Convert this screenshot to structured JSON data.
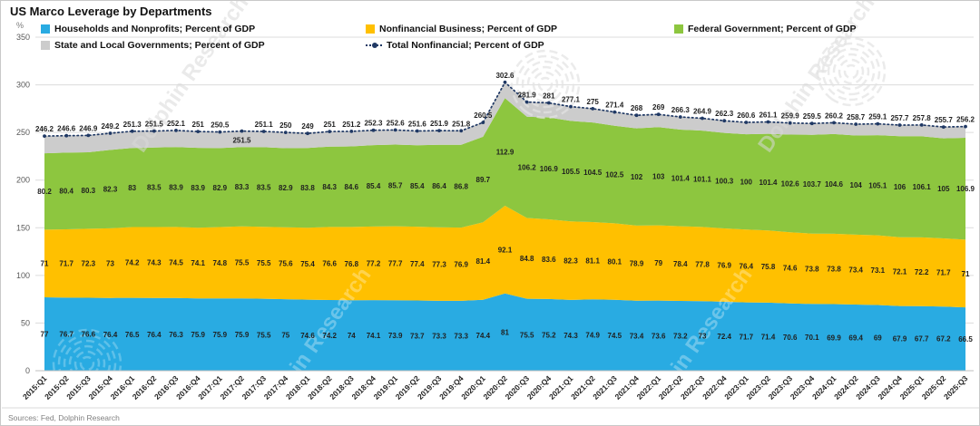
{
  "title": "US Marco Leverage by Departments",
  "y_axis_unit": "%",
  "source_note": "Sources:  Fed, Dolphin Research",
  "watermark_text": "Dolphin Research",
  "colors": {
    "households": "#29ABE2",
    "business": "#FFC000",
    "federal": "#8DC63F",
    "state_local": "#CCCCCC",
    "total_line": "#1F3864",
    "gridline": "#DCDCDC"
  },
  "legend": [
    {
      "key": "households",
      "label": "Households and Nonprofits; Percent of GDP",
      "marker": "square",
      "color": "#29ABE2"
    },
    {
      "key": "business",
      "label": "Nonfinancial Business; Percent of GDP",
      "marker": "square",
      "color": "#FFC000"
    },
    {
      "key": "federal",
      "label": "Federal Government; Percent of GDP",
      "marker": "square",
      "color": "#8DC63F"
    },
    {
      "key": "state-local",
      "label": "State and Local Governments; Percent of GDP",
      "marker": "square",
      "color": "#CCCCCC"
    },
    {
      "key": "total",
      "label": "Total Nonfinancial; Percent of GDP",
      "marker": "line",
      "color": "#1F3864"
    }
  ],
  "chart_data": {
    "type": "area",
    "stacked": true,
    "title": "US Marco Leverage by Departments",
    "ylabel": "%",
    "ylim": [
      0,
      350
    ],
    "yticks": [
      0,
      50,
      100,
      150,
      200,
      250,
      300,
      350
    ],
    "grid": true,
    "legend_position": "top",
    "categories": [
      "2015:Q1",
      "2015:Q2",
      "2015:Q3",
      "2015:Q4",
      "2016:Q1",
      "2016:Q2",
      "2016:Q3",
      "2016:Q4",
      "2017:Q1",
      "2017:Q2",
      "2017:Q3",
      "2017:Q4",
      "2018:Q1",
      "2018:Q2",
      "2018:Q3",
      "2018:Q4",
      "2019:Q1",
      "2019:Q2",
      "2019:Q3",
      "2019:Q4",
      "2020:Q1",
      "2020:Q2",
      "2020:Q3",
      "2020:Q4",
      "2021:Q1",
      "2021:Q2",
      "2021:Q3",
      "2021:Q4",
      "2022:Q1",
      "2022:Q2",
      "2022:Q3",
      "2022:Q4",
      "2023:Q1",
      "2023:Q2",
      "2023:Q3",
      "2023:Q4",
      "2024:Q1",
      "2024:Q2",
      "2024:Q3",
      "2024:Q4",
      "2025:Q1",
      "2025:Q2",
      "2025:Q3"
    ],
    "series": [
      {
        "name": "Households and Nonprofits; Percent of GDP",
        "type": "area",
        "color": "#29ABE2",
        "values": [
          77,
          76.7,
          76.6,
          76.4,
          76.5,
          76.4,
          76.3,
          75.9,
          75.9,
          75.9,
          75.5,
          75,
          74.6,
          74.2,
          74,
          74.1,
          73.9,
          73.7,
          73.3,
          73.3,
          74.4,
          81,
          75.5,
          75.2,
          74.3,
          74.9,
          74.5,
          73.4,
          73.6,
          73.2,
          73,
          72.4,
          71.7,
          71.4,
          70.6,
          70.1,
          69.9,
          69.4,
          69,
          67.9,
          67.7,
          67.2,
          66.5
        ]
      },
      {
        "name": "Nonfinancial Business; Percent of GDP",
        "type": "area",
        "color": "#FFC000",
        "values": [
          71,
          71.7,
          72.3,
          73,
          74.2,
          74.3,
          74.5,
          74.1,
          74.8,
          75.5,
          75.5,
          75.6,
          75.4,
          76.6,
          76.8,
          77.2,
          77.7,
          77.4,
          77.3,
          76.9,
          81.4,
          92.1,
          84.8,
          83.6,
          82.3,
          81.1,
          80.1,
          78.9,
          79,
          78.4,
          77.8,
          76.9,
          76.4,
          75.8,
          74.6,
          73.8,
          73.8,
          73.4,
          73.1,
          72.1,
          72.2,
          71.7,
          71
        ]
      },
      {
        "name": "Federal Government; Percent of GDP",
        "type": "area",
        "color": "#8DC63F",
        "values": [
          80.2,
          80.4,
          80.3,
          82.3,
          83,
          83.5,
          83.9,
          83.9,
          82.9,
          83.3,
          83.5,
          82.9,
          83.8,
          84.3,
          84.6,
          85.4,
          85.7,
          85.4,
          86.4,
          86.8,
          89.7,
          112.9,
          106.2,
          106.9,
          105.5,
          104.5,
          102.5,
          102,
          103,
          101.4,
          101.1,
          100.3,
          100,
          101.4,
          102.6,
          103.7,
          104.6,
          104,
          105.1,
          106,
          106.1,
          105,
          106.9
        ]
      },
      {
        "name": "State and Local Governments; Percent of GDP",
        "type": "area",
        "color": "#CCCCCC",
        "values": null,
        "note": "no data labels shown; band equals Total minus sum of other series"
      },
      {
        "name": "Total Nonfinancial; Percent of GDP",
        "type": "line",
        "color": "#1F3864",
        "values": [
          246.2,
          246.6,
          246.9,
          249.2,
          251.3,
          251.5,
          252.1,
          251,
          250.5,
          251.5,
          251.1,
          250,
          249,
          251,
          251.2,
          252.3,
          252.6,
          251.6,
          251.9,
          251.8,
          260.5,
          302.6,
          281.9,
          281,
          277.1,
          275,
          271.4,
          268,
          269,
          266.3,
          264.9,
          262.3,
          260.6,
          261.1,
          259.9,
          259.5,
          260.2,
          258.7,
          259.1,
          257.7,
          257.8,
          255.7,
          256.2
        ]
      }
    ]
  }
}
